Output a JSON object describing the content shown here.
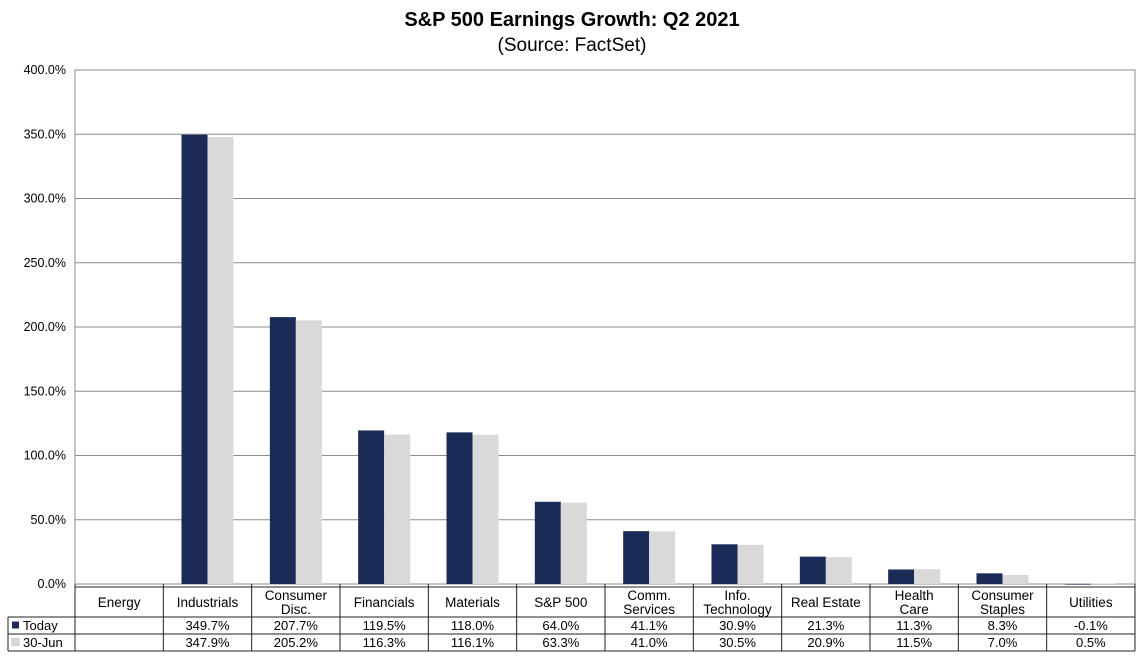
{
  "chart_data": {
    "type": "bar",
    "title": "S&P 500 Earnings Growth: Q2 2021",
    "subtitle": "(Source: FactSet)",
    "categories": [
      "Energy",
      "Industrials",
      "Consumer Disc.",
      "Financials",
      "Materials",
      "S&P 500",
      "Comm. Services",
      "Info. Technology",
      "Real Estate",
      "Health Care",
      "Consumer Staples",
      "Utilities"
    ],
    "category_lines": [
      [
        "Energy"
      ],
      [
        "Industrials"
      ],
      [
        "Consumer",
        "Disc."
      ],
      [
        "Financials"
      ],
      [
        "Materials"
      ],
      [
        "S&P 500"
      ],
      [
        "Comm.",
        "Services"
      ],
      [
        "Info.",
        "Technology"
      ],
      [
        "Real Estate"
      ],
      [
        "Health",
        "Care"
      ],
      [
        "Consumer",
        "Staples"
      ],
      [
        "Utilities"
      ]
    ],
    "series": [
      {
        "name": "Today",
        "color": "#1b2a56",
        "values": [
          null,
          349.7,
          207.7,
          119.5,
          118.0,
          64.0,
          41.1,
          30.9,
          21.3,
          11.3,
          8.3,
          -0.1
        ],
        "labels": [
          "",
          "349.7%",
          "207.7%",
          "119.5%",
          "118.0%",
          "64.0%",
          "41.1%",
          "30.9%",
          "21.3%",
          "11.3%",
          "8.3%",
          "-0.1%"
        ]
      },
      {
        "name": "30-Jun",
        "color": "#d9d9d9",
        "values": [
          null,
          347.9,
          205.2,
          116.3,
          116.1,
          63.3,
          41.0,
          30.5,
          20.9,
          11.5,
          7.0,
          0.5
        ],
        "labels": [
          "",
          "347.9%",
          "205.2%",
          "116.3%",
          "116.1%",
          "63.3%",
          "41.0%",
          "30.5%",
          "20.9%",
          "11.5%",
          "7.0%",
          "0.5%"
        ]
      }
    ],
    "ylim": [
      0,
      400
    ],
    "yticks": [
      0,
      50,
      100,
      150,
      200,
      250,
      300,
      350,
      400
    ],
    "ytick_labels": [
      "0.0%",
      "50.0%",
      "100.0%",
      "150.0%",
      "200.0%",
      "250.0%",
      "300.0%",
      "350.0%",
      "400.0%"
    ],
    "grid": true,
    "legend": "data-table"
  }
}
